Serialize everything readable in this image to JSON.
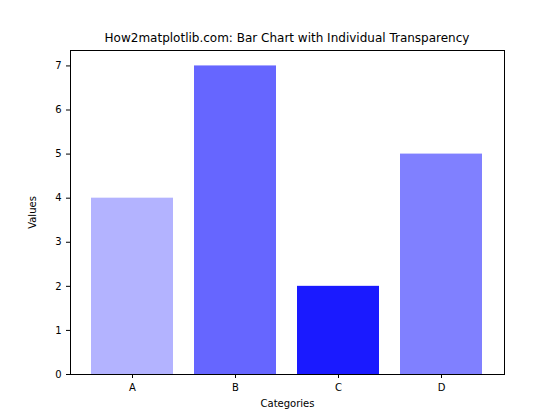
{
  "chart_data": {
    "type": "bar",
    "title": "How2matplotlib.com: Bar Chart with Individual Transparency",
    "x_label": "Categories",
    "y_label": "Values",
    "categories": [
      "A",
      "B",
      "C",
      "D"
    ],
    "values": [
      4,
      7,
      2,
      5
    ],
    "colors": [
      "#b3b3ff",
      "#6666ff",
      "#1a1aff",
      "#8080ff"
    ],
    "ylim": [
      0,
      7.35
    ],
    "yticks": [
      0,
      1,
      2,
      3,
      4,
      5,
      6,
      7
    ],
    "grid": false
  }
}
